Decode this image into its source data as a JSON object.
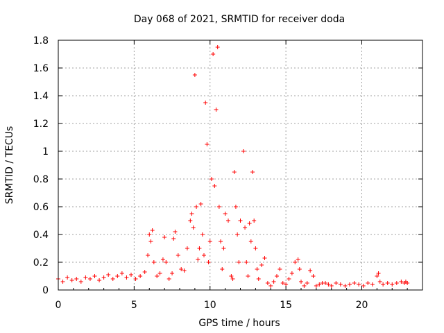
{
  "chart_data": {
    "type": "scatter",
    "title": "Day 068 of 2021, SRMTID for receiver doda",
    "xlabel": "GPS time / hours",
    "ylabel": "SRMTID / TECUs",
    "xlim": [
      0,
      24.0
    ],
    "ylim": [
      0,
      1.8
    ],
    "grid": true,
    "marker": "plus",
    "series_color": "#ff0000",
    "x_ticks": [
      {
        "value": 0,
        "label": "0"
      },
      {
        "value": 5,
        "label": "5"
      },
      {
        "value": 10,
        "label": "10"
      },
      {
        "value": 15,
        "label": "15"
      },
      {
        "value": 20,
        "label": "20"
      }
    ],
    "y_ticks": [
      {
        "value": 0,
        "label": "0"
      },
      {
        "value": 0.2,
        "label": "0.2"
      },
      {
        "value": 0.4,
        "label": "0.4"
      },
      {
        "value": 0.6,
        "label": "0.6"
      },
      {
        "value": 0.8,
        "label": "0.8"
      },
      {
        "value": 1.0,
        "label": "1"
      },
      {
        "value": 1.2,
        "label": "1.2"
      },
      {
        "value": 1.4,
        "label": "1.4"
      },
      {
        "value": 1.6,
        "label": "1.6"
      },
      {
        "value": 1.8,
        "label": "1.8"
      }
    ],
    "series": [
      {
        "name": "SRMTID",
        "x": [
          0.0,
          0.3,
          0.6,
          0.9,
          1.2,
          1.5,
          1.8,
          2.1,
          2.4,
          2.7,
          3.0,
          3.3,
          3.6,
          3.9,
          4.2,
          4.5,
          4.8,
          5.1,
          5.4,
          5.7,
          5.9,
          6.0,
          6.1,
          6.2,
          6.3,
          6.5,
          6.7,
          6.9,
          7.0,
          7.1,
          7.3,
          7.5,
          7.6,
          7.7,
          7.9,
          8.1,
          8.3,
          8.5,
          8.7,
          8.8,
          8.9,
          9.0,
          9.1,
          9.2,
          9.3,
          9.4,
          9.5,
          9.6,
          9.7,
          9.8,
          9.9,
          10.0,
          10.1,
          10.2,
          10.3,
          10.4,
          10.5,
          10.6,
          10.7,
          10.8,
          10.9,
          11.0,
          11.2,
          11.4,
          11.5,
          11.6,
          11.7,
          11.8,
          11.9,
          12.0,
          12.2,
          12.3,
          12.4,
          12.5,
          12.6,
          12.7,
          12.8,
          12.9,
          13.0,
          13.1,
          13.2,
          13.4,
          13.6,
          13.8,
          14.0,
          14.2,
          14.4,
          14.6,
          14.8,
          15.0,
          15.2,
          15.4,
          15.6,
          15.8,
          15.9,
          16.0,
          16.2,
          16.4,
          16.6,
          16.8,
          17.0,
          17.2,
          17.4,
          17.6,
          17.8,
          18.0,
          18.3,
          18.6,
          18.9,
          19.2,
          19.5,
          19.8,
          20.1,
          20.4,
          20.7,
          21.0,
          21.1,
          21.2,
          21.4,
          21.7,
          22.0,
          22.3,
          22.6,
          22.8,
          22.9,
          23.0
        ],
        "y": [
          0.08,
          0.06,
          0.09,
          0.07,
          0.08,
          0.06,
          0.09,
          0.08,
          0.1,
          0.07,
          0.09,
          0.11,
          0.08,
          0.1,
          0.12,
          0.09,
          0.11,
          0.08,
          0.1,
          0.13,
          0.25,
          0.4,
          0.35,
          0.43,
          0.2,
          0.1,
          0.12,
          0.22,
          0.38,
          0.2,
          0.08,
          0.12,
          0.37,
          0.42,
          0.25,
          0.15,
          0.14,
          0.3,
          0.5,
          0.55,
          0.45,
          1.55,
          0.6,
          0.22,
          0.3,
          0.62,
          0.4,
          0.25,
          1.35,
          1.05,
          0.2,
          0.35,
          0.8,
          1.7,
          0.75,
          1.3,
          1.75,
          0.6,
          0.35,
          0.15,
          0.3,
          0.55,
          0.5,
          0.1,
          0.08,
          0.85,
          0.6,
          0.4,
          0.2,
          0.5,
          1.0,
          0.45,
          0.2,
          0.1,
          0.48,
          0.35,
          0.85,
          0.5,
          0.3,
          0.15,
          0.08,
          0.18,
          0.23,
          0.05,
          0.03,
          0.06,
          0.1,
          0.15,
          0.05,
          0.04,
          0.08,
          0.12,
          0.2,
          0.22,
          0.15,
          0.06,
          0.03,
          0.05,
          0.14,
          0.1,
          0.03,
          0.04,
          0.05,
          0.05,
          0.04,
          0.03,
          0.05,
          0.04,
          0.03,
          0.04,
          0.05,
          0.04,
          0.03,
          0.05,
          0.04,
          0.1,
          0.12,
          0.06,
          0.04,
          0.05,
          0.04,
          0.05,
          0.06,
          0.05,
          0.06,
          0.05
        ]
      }
    ]
  }
}
